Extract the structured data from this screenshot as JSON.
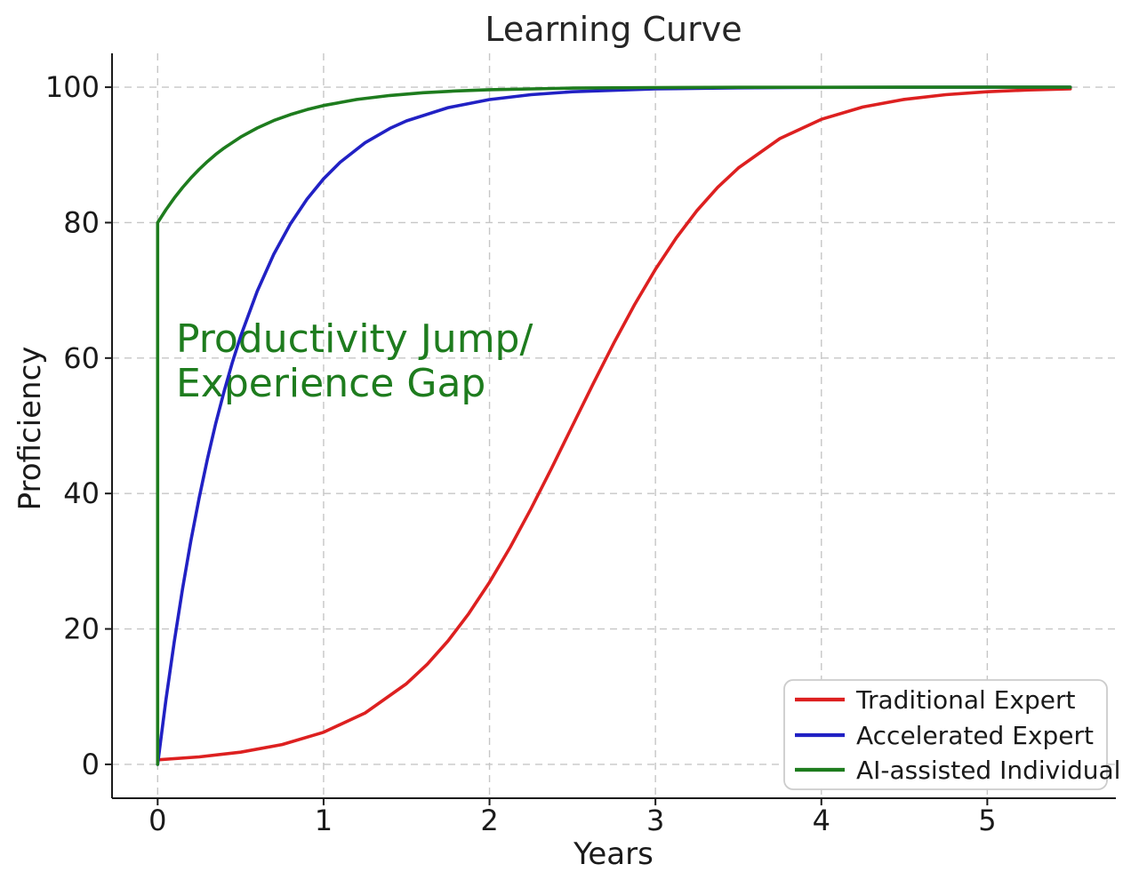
{
  "figure": {
    "background": "#ffffff"
  },
  "chart_data": {
    "type": "line",
    "title": "Learning Curve",
    "xlabel": "Years",
    "ylabel": "Proficiency",
    "xlim": [
      -0.275,
      5.775
    ],
    "ylim": [
      -5,
      105
    ],
    "xticks": [
      0,
      1,
      2,
      3,
      4,
      5
    ],
    "yticks": [
      0,
      20,
      40,
      60,
      80,
      100
    ],
    "grid": true,
    "grid_style": "dashed",
    "legend": {
      "position": "lower right"
    },
    "annotation": {
      "lines": [
        "Productivity Jump/",
        "Experience Gap"
      ],
      "color": "#1e7c1e",
      "x": 0.1,
      "y": 66
    },
    "series": [
      {
        "id": "traditional-expert",
        "name": "Traditional Expert",
        "color": "#dd2020",
        "points": [
          [
            0,
            0.67
          ],
          [
            0.25,
            1.1
          ],
          [
            0.5,
            1.8
          ],
          [
            0.75,
            2.93
          ],
          [
            1,
            4.74
          ],
          [
            1.25,
            7.59
          ],
          [
            1.5,
            11.92
          ],
          [
            1.625,
            14.8
          ],
          [
            1.75,
            18.24
          ],
          [
            1.875,
            22.27
          ],
          [
            2,
            26.89
          ],
          [
            2.125,
            32.08
          ],
          [
            2.25,
            37.75
          ],
          [
            2.375,
            43.78
          ],
          [
            2.5,
            50
          ],
          [
            2.625,
            56.22
          ],
          [
            2.75,
            62.25
          ],
          [
            2.875,
            67.92
          ],
          [
            3,
            73.11
          ],
          [
            3.125,
            77.73
          ],
          [
            3.25,
            81.76
          ],
          [
            3.375,
            85.2
          ],
          [
            3.5,
            88.08
          ],
          [
            3.75,
            92.41
          ],
          [
            4,
            95.26
          ],
          [
            4.25,
            97.07
          ],
          [
            4.5,
            98.2
          ],
          [
            4.75,
            98.9
          ],
          [
            5,
            99.33
          ],
          [
            5.25,
            99.59
          ],
          [
            5.5,
            99.75
          ]
        ]
      },
      {
        "id": "accelerated-expert",
        "name": "Accelerated Expert",
        "color": "#2121c4",
        "points": [
          [
            0,
            0
          ],
          [
            0.05,
            9.52
          ],
          [
            0.1,
            18.13
          ],
          [
            0.15,
            25.92
          ],
          [
            0.2,
            32.97
          ],
          [
            0.25,
            39.35
          ],
          [
            0.3,
            45.12
          ],
          [
            0.35,
            50.34
          ],
          [
            0.4,
            55.07
          ],
          [
            0.45,
            59.34
          ],
          [
            0.5,
            63.21
          ],
          [
            0.6,
            69.88
          ],
          [
            0.7,
            75.34
          ],
          [
            0.8,
            79.81
          ],
          [
            0.9,
            83.47
          ],
          [
            1,
            86.47
          ],
          [
            1.1,
            88.92
          ],
          [
            1.25,
            91.79
          ],
          [
            1.4,
            93.92
          ],
          [
            1.5,
            95.02
          ],
          [
            1.75,
            96.98
          ],
          [
            2,
            98.17
          ],
          [
            2.25,
            98.89
          ],
          [
            2.5,
            99.33
          ],
          [
            3,
            99.75
          ],
          [
            3.5,
            99.91
          ],
          [
            4,
            99.97
          ],
          [
            4.5,
            99.99
          ],
          [
            5,
            100
          ],
          [
            5.5,
            100
          ]
        ]
      },
      {
        "id": "ai-assisted-individual",
        "name": "AI-assisted Individual",
        "color": "#1e7c1e",
        "points": [
          [
            0,
            0
          ],
          [
            0,
            80
          ],
          [
            0.05,
            81.9
          ],
          [
            0.1,
            83.63
          ],
          [
            0.15,
            85.18
          ],
          [
            0.2,
            86.59
          ],
          [
            0.25,
            87.87
          ],
          [
            0.3,
            89.02
          ],
          [
            0.35,
            90.07
          ],
          [
            0.4,
            91.01
          ],
          [
            0.5,
            92.64
          ],
          [
            0.6,
            93.98
          ],
          [
            0.7,
            95.07
          ],
          [
            0.8,
            95.96
          ],
          [
            0.9,
            96.69
          ],
          [
            1,
            97.3
          ],
          [
            1.2,
            98.19
          ],
          [
            1.4,
            98.78
          ],
          [
            1.6,
            99.18
          ],
          [
            1.8,
            99.45
          ],
          [
            2,
            99.63
          ],
          [
            2.5,
            99.87
          ],
          [
            3,
            99.95
          ],
          [
            3.5,
            99.98
          ],
          [
            4,
            99.99
          ],
          [
            4.5,
            100
          ],
          [
            5,
            100
          ],
          [
            5.5,
            100
          ]
        ]
      }
    ]
  }
}
